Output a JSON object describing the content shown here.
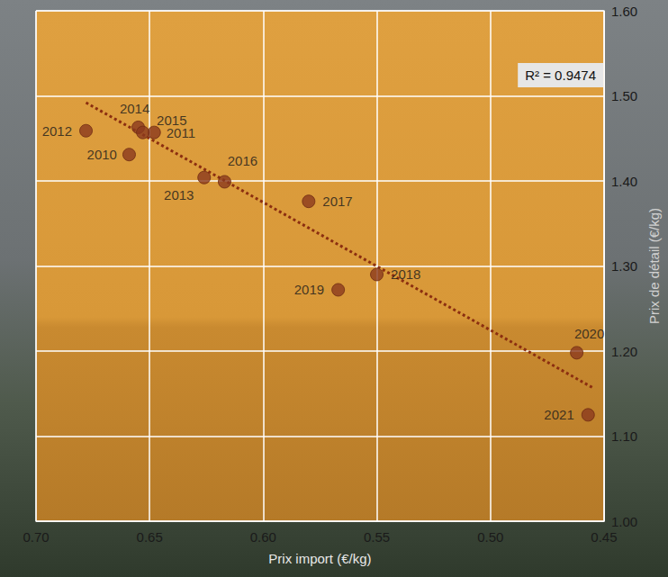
{
  "chart_data": {
    "type": "scatter",
    "x_label": "Prix import (€/kg)",
    "y_label": "Prix de détail (€/kg)",
    "x": [
      0.659,
      0.648,
      0.678,
      0.626,
      0.655,
      0.653,
      0.617,
      0.58,
      0.55,
      0.567,
      0.462,
      0.457
    ],
    "values": [
      1.431,
      1.457,
      1.459,
      1.404,
      1.463,
      1.457,
      1.399,
      1.376,
      1.29,
      1.272,
      1.198,
      1.125
    ],
    "point_labels": [
      "2010",
      "2011",
      "2012",
      "2013",
      "2014",
      "2015",
      "2016",
      "2017",
      "2018",
      "2019",
      "2020",
      "2021"
    ],
    "color": "#8b3a1e",
    "marker": "circle",
    "xlim": [
      0.7,
      0.45
    ],
    "xticks": [
      {
        "value": 0.7,
        "label": "0.70"
      },
      {
        "value": 0.65,
        "label": "0.65"
      },
      {
        "value": 0.6,
        "label": "0.60"
      },
      {
        "value": 0.55,
        "label": "0.55"
      },
      {
        "value": 0.5,
        "label": "0.50"
      },
      {
        "value": 0.45,
        "label": "0.45"
      }
    ],
    "ylim": [
      1.0,
      1.6
    ],
    "yticks": [
      {
        "value": 1.0,
        "label": "1.00"
      },
      {
        "value": 1.1,
        "label": "1.10"
      },
      {
        "value": 1.2,
        "label": "1.20"
      },
      {
        "value": 1.3,
        "label": "1.30"
      },
      {
        "value": 1.4,
        "label": "1.40"
      },
      {
        "value": 1.5,
        "label": "1.50"
      },
      {
        "value": 1.6,
        "label": "1.60"
      }
    ],
    "grid": true,
    "trend_line": {
      "x": [
        0.678,
        0.455
      ],
      "values": [
        1.492,
        1.157
      ],
      "color": "#8b2e10",
      "line_style": "dotted"
    },
    "annotations": [
      "R² = 0.9474"
    ]
  }
}
